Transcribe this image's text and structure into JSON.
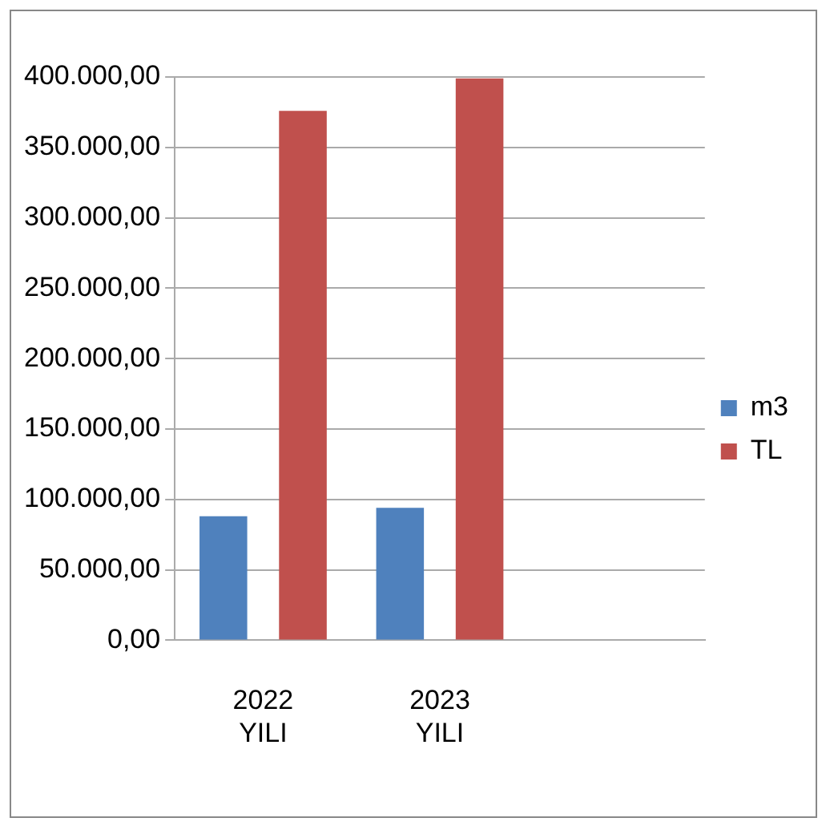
{
  "chart_data": {
    "type": "bar",
    "categories": [
      "2022 YILI",
      "2023 YILI",
      null
    ],
    "series": [
      {
        "name": "m3",
        "color": "#4f81bd",
        "values": [
          88000,
          94000,
          null
        ]
      },
      {
        "name": "TL",
        "color": "#c0504d",
        "values": [
          376000,
          399000,
          null
        ]
      }
    ],
    "ylim": [
      0,
      400000
    ],
    "yticks": [
      {
        "value": 0,
        "label": "0,00"
      },
      {
        "value": 50000,
        "label": "50.000,00"
      },
      {
        "value": 100000,
        "label": "100.000,00"
      },
      {
        "value": 150000,
        "label": "150.000,00"
      },
      {
        "value": 200000,
        "label": "200.000,00"
      },
      {
        "value": 250000,
        "label": "250.000,00"
      },
      {
        "value": 300000,
        "label": "300.000,00"
      },
      {
        "value": 350000,
        "label": "350.000,00"
      },
      {
        "value": 400000,
        "label": "400.000,00"
      }
    ],
    "grid": "y",
    "legend": "right"
  }
}
